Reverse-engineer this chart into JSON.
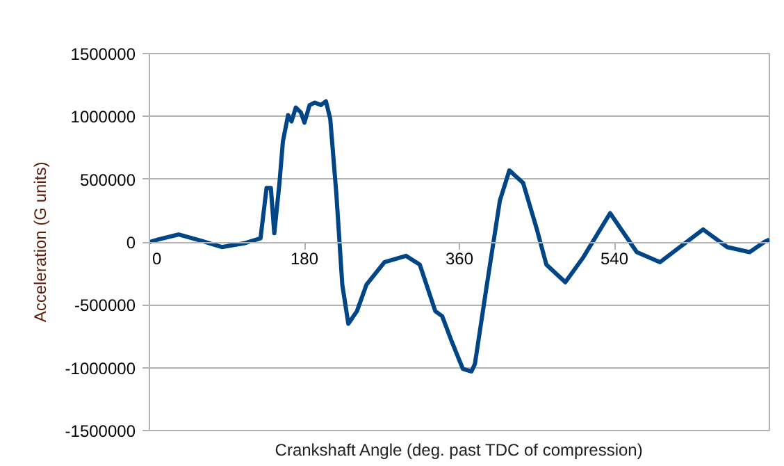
{
  "chart_data": {
    "type": "line",
    "xlabel": "Crankshaft Angle (deg. past TDC of compression)",
    "ylabel": "Acceleration (G units)",
    "xlim": [
      0,
      720
    ],
    "ylim": [
      -1500000,
      1500000
    ],
    "xticks": [
      0,
      180,
      360,
      540
    ],
    "yticks": [
      -1500000,
      -1000000,
      -500000,
      0,
      500000,
      1000000,
      1500000
    ],
    "grid": "y",
    "line_style": "solid",
    "marker": "none",
    "series": [
      {
        "color": "#004586",
        "x": [
          0,
          10,
          34,
          60,
          84,
          110,
          129,
          136,
          141,
          145,
          151,
          155,
          161,
          165,
          170,
          176,
          180,
          186,
          192,
          199,
          205,
          210,
          217,
          224,
          231,
          241,
          252,
          273,
          298,
          314,
          332,
          340,
          351,
          364,
          374,
          378,
          391,
          407,
          418,
          434,
          450,
          461,
          483,
          504,
          535,
          566,
          593,
          643,
          671,
          697,
          714,
          720
        ],
        "values": [
          0,
          20000,
          60000,
          10000,
          -40000,
          -10000,
          30000,
          430000,
          430000,
          70000,
          470000,
          800000,
          1010000,
          960000,
          1070000,
          1030000,
          950000,
          1090000,
          1110000,
          1090000,
          1120000,
          980000,
          390000,
          -340000,
          -650000,
          -550000,
          -340000,
          -160000,
          -110000,
          -180000,
          -550000,
          -590000,
          -790000,
          -1010000,
          -1030000,
          -970000,
          -380000,
          330000,
          570000,
          470000,
          100000,
          -180000,
          -320000,
          -120000,
          230000,
          -80000,
          -160000,
          100000,
          -40000,
          -80000,
          0,
          20000
        ]
      }
    ]
  }
}
